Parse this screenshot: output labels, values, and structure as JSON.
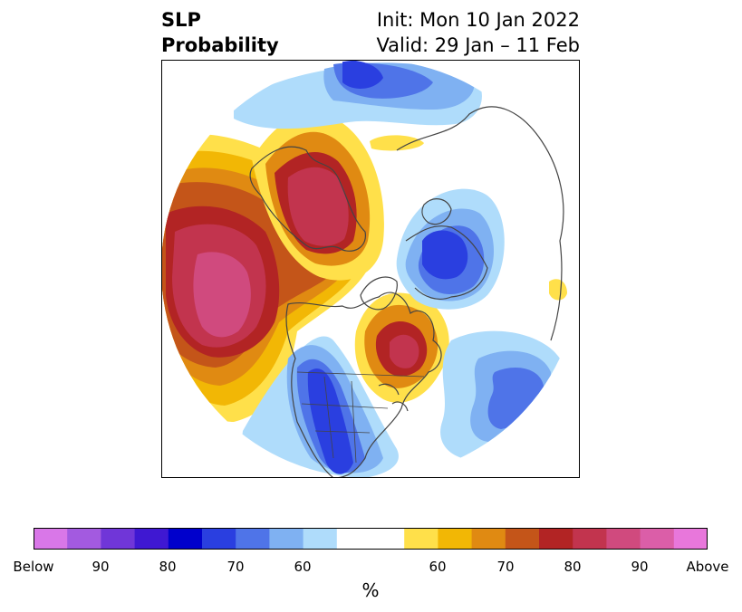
{
  "title": {
    "line1": "SLP",
    "line2": "Probability"
  },
  "subtitle": {
    "init": "Init: Mon 10 Jan 2022",
    "valid": "Valid: 29 Jan – 11 Feb"
  },
  "colorbar": {
    "colors": [
      "#d977e8",
      "#a35ae0",
      "#7036d8",
      "#3f18d2",
      "#0000cc",
      "#2a3fe0",
      "#4f74e8",
      "#7fb1f2",
      "#afdcfb",
      "#ffffff",
      "#ffffff",
      "#ffe04a",
      "#f2b705",
      "#e08a12",
      "#c45519",
      "#b22424",
      "#c2344e",
      "#d04a7e",
      "#db5ea8",
      "#e877db"
    ],
    "ticks": [
      "Below",
      "90",
      "80",
      "70",
      "60",
      "60",
      "70",
      "80",
      "90",
      "Above"
    ],
    "unit": "%"
  },
  "palette": {
    "below": [
      "#afdcfb",
      "#7fb1f2",
      "#4f74e8",
      "#2a3fe0",
      "#0000cc"
    ],
    "above": [
      "#ffe04a",
      "#f2b705",
      "#e08a12",
      "#c45519",
      "#b22424",
      "#c2344e",
      "#d04a7e"
    ]
  }
}
